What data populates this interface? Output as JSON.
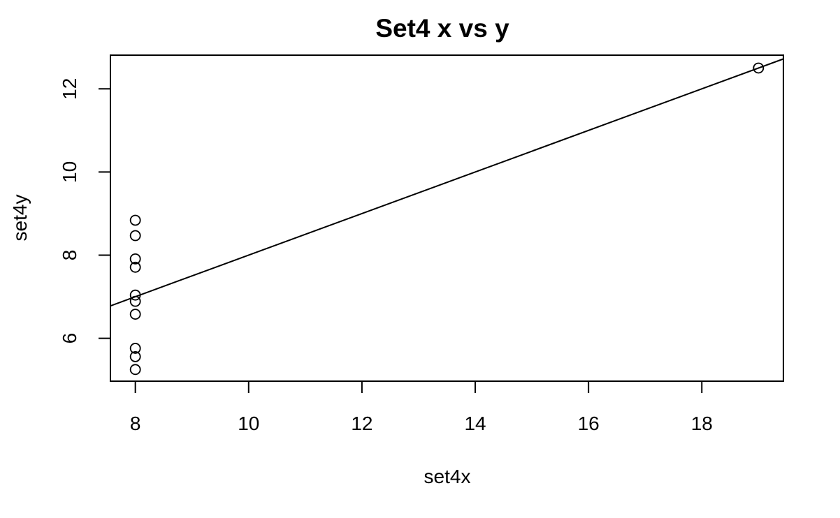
{
  "chart_data": {
    "type": "scatter",
    "title": "Set4 x vs y",
    "xlabel": "set4x",
    "ylabel": "set4y",
    "xlim": [
      7.56,
      19.44
    ],
    "ylim": [
      4.97,
      12.81
    ],
    "x_ticks": [
      8,
      10,
      12,
      14,
      16,
      18
    ],
    "y_ticks": [
      6,
      8,
      10,
      12
    ],
    "grid": false,
    "point_style": "open-circle",
    "colors": {
      "foreground": "#000000",
      "background": "#ffffff"
    },
    "series": [
      {
        "x": [
          8,
          8,
          8,
          8,
          8,
          8,
          8,
          19,
          8,
          8,
          8
        ],
        "y": [
          6.58,
          5.76,
          7.71,
          8.84,
          8.47,
          7.04,
          5.25,
          12.5,
          5.56,
          7.91,
          6.89
        ]
      }
    ],
    "regression_line": {
      "intercept": 3.0017,
      "slope": 0.4999
    }
  }
}
